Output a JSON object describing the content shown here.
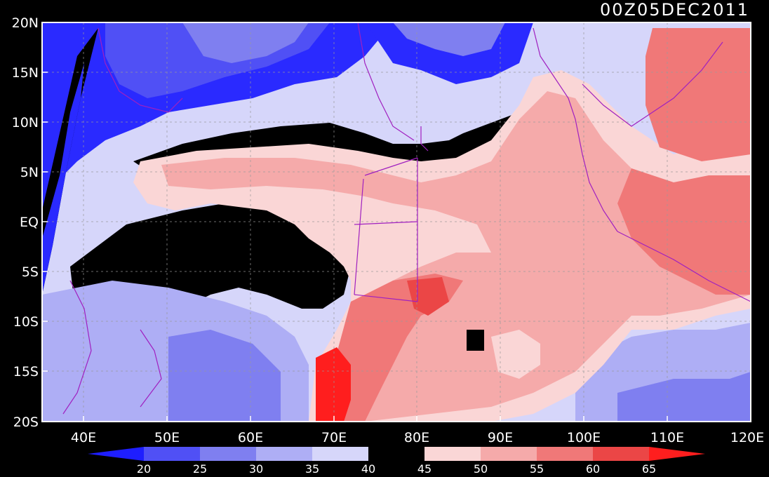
{
  "timestamp": "00Z05DEC2011",
  "lat_ticks": [
    "20N",
    "15N",
    "10N",
    "5N",
    "EQ",
    "5S",
    "10S",
    "15S",
    "20S"
  ],
  "lon_ticks": [
    "40E",
    "50E",
    "60E",
    "70E",
    "80E",
    "90E",
    "100E",
    "110E",
    "120E"
  ],
  "colorbar": {
    "labels": [
      "20",
      "25",
      "30",
      "35",
      "40",
      "45",
      "50",
      "55",
      "60",
      "65"
    ],
    "colors": [
      "#1e1eff",
      "#5050f5",
      "#7f7ff0",
      "#aeaef5",
      "#d6d6fa",
      "#000000",
      "#fad6d6",
      "#f5aaaa",
      "#f07878",
      "#eb4646",
      "#ff1e1e"
    ]
  },
  "colors": {
    "background": "#000000",
    "coastline": "#a020c0",
    "grid": "#888888"
  }
}
